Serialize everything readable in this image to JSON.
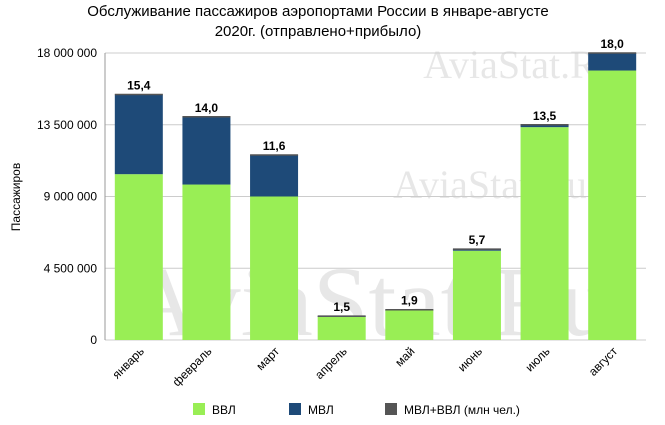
{
  "chart_data": {
    "type": "bar",
    "stacked": true,
    "title_lines": [
      "Обслуживание пассажиров аэропортами России в январе-августе",
      "2020г. (отправлено+прибыло)"
    ],
    "ylabel": "Пассажиров",
    "xlabel": "",
    "ylim": [
      0,
      18000000
    ],
    "yticks": [
      0,
      4500000,
      9000000,
      13500000,
      18000000
    ],
    "ytick_labels": [
      "0",
      "4 500 000",
      "9 000 000",
      "13 500 000",
      "18 000 000"
    ],
    "grid": true,
    "legend_position": "bottom",
    "categories": [
      "январь",
      "февраль",
      "март",
      "апрель",
      "май",
      "июнь",
      "июль",
      "август"
    ],
    "series": [
      {
        "name": "ВВЛ",
        "color": "#99ee55",
        "values": [
          10400000,
          9750000,
          9000000,
          1450000,
          1850000,
          5600000,
          13350000,
          16900000
        ]
      },
      {
        "name": "МВЛ",
        "color": "#1e4a78",
        "values": [
          5000000,
          4250000,
          2600000,
          50000,
          50000,
          100000,
          150000,
          1100000
        ]
      },
      {
        "name": "МВЛ+ВВЛ (млн чел.)",
        "color": "#555555",
        "values": [
          15.4,
          14.0,
          11.6,
          1.5,
          1.9,
          5.7,
          13.5,
          18.0
        ]
      }
    ],
    "data_labels": [
      "15,4",
      "14,0",
      "11,6",
      "1,5",
      "1,9",
      "5,7",
      "13,5",
      "18,0"
    ]
  },
  "watermark": "AviaStat.Ru",
  "colors": {
    "grid": "#cccccc",
    "axis": "#999999",
    "vvl": "#99ee55",
    "mvl": "#1e4a78",
    "total": "#555555"
  }
}
